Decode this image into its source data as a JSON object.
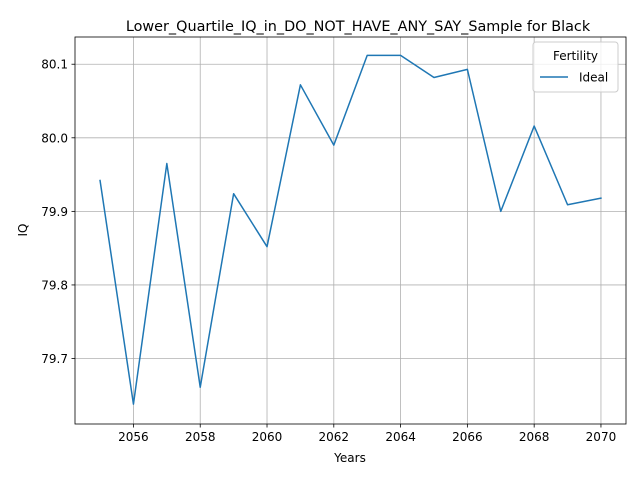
{
  "chart_data": {
    "type": "line",
    "title": "Lower_Quartile_IQ_in_DO_NOT_HAVE_ANY_SAY_Sample for Black",
    "xlabel": "Years",
    "ylabel": "IQ",
    "xlim": [
      2054.25,
      2070.75
    ],
    "ylim": [
      79.611,
      80.137
    ],
    "xticks": [
      2056,
      2058,
      2060,
      2062,
      2064,
      2066,
      2068,
      2070
    ],
    "yticks": [
      79.7,
      79.8,
      79.9,
      80.0,
      80.1
    ],
    "ytick_labels": [
      "79.7",
      "79.8",
      "79.9",
      "80.0",
      "80.1"
    ],
    "grid": true,
    "legend": {
      "title": "Fertility",
      "placement": "top-right"
    },
    "series": [
      {
        "name": "Ideal",
        "color": "#1f77b4",
        "x": [
          2055,
          2056,
          2057,
          2058,
          2059,
          2060,
          2061,
          2062,
          2063,
          2064,
          2065,
          2066,
          2067,
          2068,
          2069,
          2070
        ],
        "y": [
          79.942,
          79.638,
          79.965,
          79.661,
          79.924,
          79.852,
          80.072,
          79.99,
          80.112,
          80.112,
          80.082,
          80.093,
          79.9,
          80.016,
          79.909,
          79.918
        ]
      }
    ]
  }
}
